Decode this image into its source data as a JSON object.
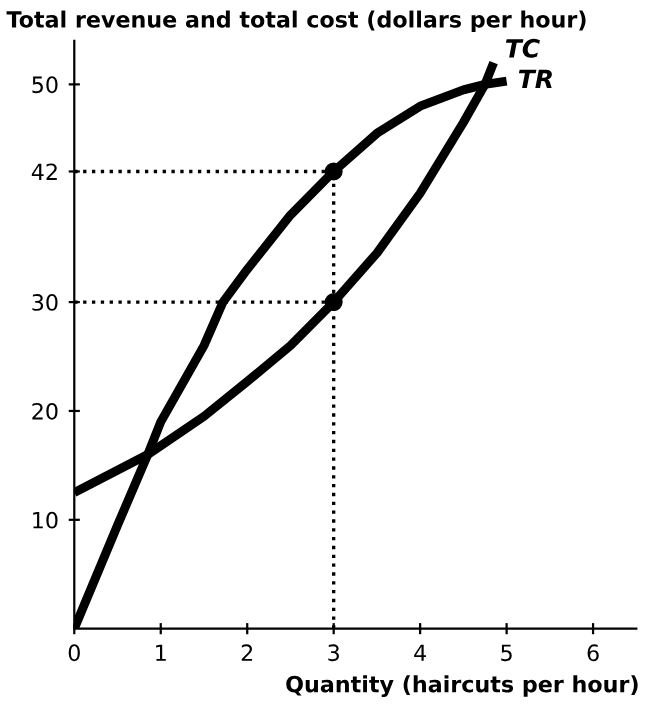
{
  "chart_data": {
    "type": "line",
    "ylabel": "Total revenue and total cost (dollars per hour)",
    "xlabel": "Quantity (haircuts per hour)",
    "xlim": [
      0,
      6.5
    ],
    "ylim": [
      0,
      54
    ],
    "xticks": [
      0,
      1,
      2,
      3,
      4,
      5,
      6
    ],
    "yticks": [
      10,
      20,
      30,
      42,
      50
    ],
    "grid": false,
    "legend": false,
    "marker": "none",
    "line_style": "solid",
    "series": [
      {
        "name": "TR",
        "color": "#000000",
        "x": [
          0,
          0.5,
          0.85,
          1,
          1.5,
          1.72,
          2,
          2.5,
          3,
          3.5,
          4,
          4.5,
          4.75,
          5
        ],
        "values": [
          0,
          9.5,
          16,
          19,
          26,
          30,
          33,
          38,
          42,
          45.5,
          48,
          49.5,
          50,
          50.3
        ]
      },
      {
        "name": "TC",
        "color": "#000000",
        "x": [
          0,
          0.85,
          1,
          1.5,
          2,
          2.5,
          3,
          3.5,
          4,
          4.5,
          4.75,
          4.85
        ],
        "values": [
          12.5,
          16,
          16.8,
          19.5,
          22.7,
          26,
          30,
          34.5,
          40,
          46.5,
          50,
          52
        ]
      },
      {
        "type": "scatter",
        "color": "#000000",
        "marker": "circle",
        "x": [
          3,
          3
        ],
        "values": [
          42,
          30
        ]
      }
    ],
    "ref_lines": [
      {
        "axis": "y",
        "value": 42,
        "line_style": "dotted"
      },
      {
        "axis": "y",
        "value": 30,
        "line_style": "dotted"
      },
      {
        "axis": "x",
        "value": 3,
        "line_style": "dotted"
      }
    ]
  }
}
